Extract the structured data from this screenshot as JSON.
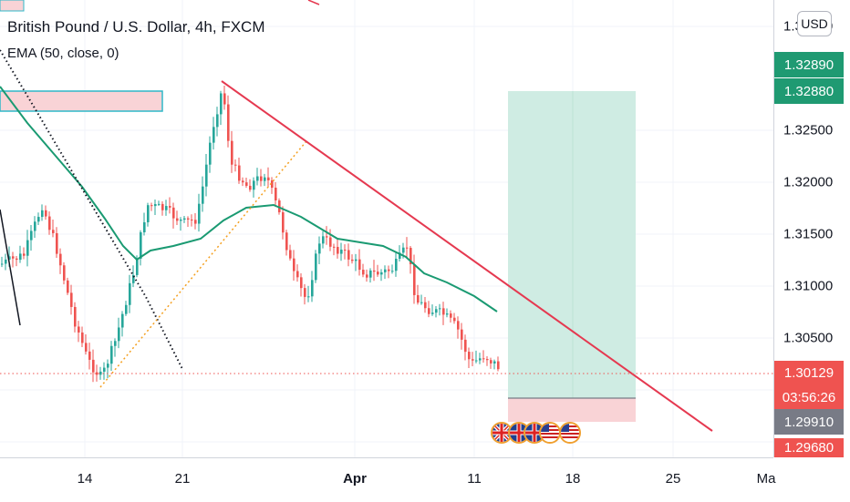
{
  "header": {
    "title": "British Pound / U.S. Dollar, 4h, FXCM",
    "indicator": "EMA (50, close, 0)"
  },
  "price_axis": {
    "currency": "USD",
    "labels": [
      "1.33000",
      "1.32500",
      "1.32000",
      "1.31500",
      "1.31000",
      "1.30500"
    ],
    "tags": {
      "target_top": "1.32890",
      "target_bottom": "1.32880",
      "current_price": "1.30129",
      "countdown": "03:56:26",
      "stop": "1.29910",
      "bottom": "1.29680"
    }
  },
  "time_axis": {
    "labels": [
      "14",
      "21",
      "Apr",
      "11",
      "18",
      "25",
      "Ma"
    ]
  },
  "events": [
    "uk-flag",
    "uk-flag",
    "uk-flag",
    "us-flag",
    "us-flag"
  ],
  "colors": {
    "up": "#26a69a",
    "down": "#ef5350",
    "ema": "#1a9a72",
    "trendline": "#e53950",
    "target_zone": "#cfece3",
    "stop_zone": "#f9d3d6"
  }
}
